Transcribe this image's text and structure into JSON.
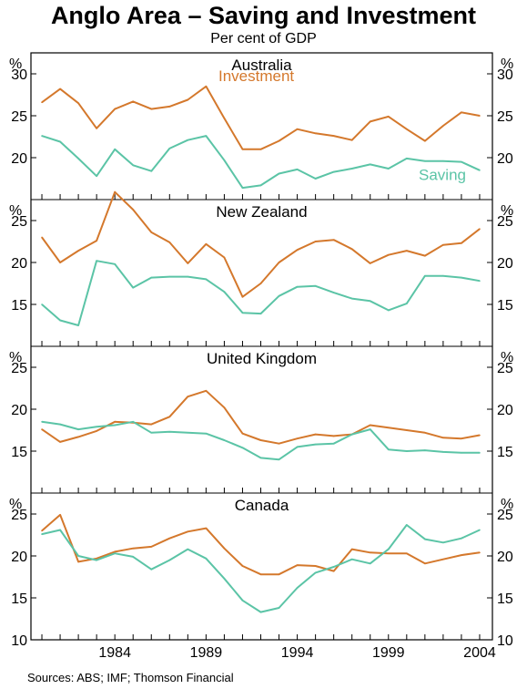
{
  "title": "Anglo Area – Saving and Investment",
  "subtitle": "Per cent of GDP",
  "source": "Sources: ABS; IMF; Thomson Financial",
  "colors": {
    "investment": "#d4782c",
    "saving": "#5bc4a6",
    "frame": "#000000"
  },
  "chart_data": [
    {
      "type": "line",
      "title": "Australia",
      "unit": "%",
      "ylim": [
        15,
        32.5
      ],
      "yticks": [
        20,
        25,
        30
      ],
      "x": [
        1980,
        1981,
        1982,
        1983,
        1984,
        1985,
        1986,
        1987,
        1988,
        1989,
        1990,
        1991,
        1992,
        1993,
        1994,
        1995,
        1996,
        1997,
        1998,
        1999,
        2000,
        2001,
        2002,
        2003,
        2004
      ],
      "series": [
        {
          "name": "Investment",
          "values": [
            26.6,
            28.2,
            26.5,
            23.5,
            25.8,
            26.7,
            25.8,
            26.1,
            26.9,
            28.5,
            24.7,
            21.0,
            21.0,
            22.0,
            23.4,
            22.9,
            22.6,
            22.1,
            24.3,
            24.9,
            23.4,
            22.0,
            23.8,
            25.4,
            25.0
          ]
        },
        {
          "name": "Saving",
          "values": [
            22.6,
            21.9,
            19.9,
            17.8,
            21.0,
            19.1,
            18.4,
            21.1,
            22.1,
            22.6,
            19.7,
            16.4,
            16.7,
            18.1,
            18.6,
            17.5,
            18.3,
            18.7,
            19.2,
            18.7,
            19.9,
            19.6,
            19.6,
            19.5,
            18.5
          ]
        }
      ]
    },
    {
      "type": "line",
      "title": "New Zealand",
      "unit": "%",
      "ylim": [
        10,
        27.5
      ],
      "yticks": [
        15,
        20,
        25
      ],
      "x": [
        1980,
        1981,
        1982,
        1983,
        1984,
        1985,
        1986,
        1987,
        1988,
        1989,
        1990,
        1991,
        1992,
        1993,
        1994,
        1995,
        1996,
        1997,
        1998,
        1999,
        2000,
        2001,
        2002,
        2003,
        2004
      ],
      "series": [
        {
          "name": "Investment",
          "values": [
            23.0,
            20.0,
            21.4,
            22.6,
            28.4,
            26.3,
            23.6,
            22.4,
            19.9,
            22.2,
            20.6,
            15.9,
            17.5,
            20.0,
            21.5,
            22.5,
            22.7,
            21.6,
            19.9,
            20.9,
            21.4,
            20.8,
            22.1,
            22.3,
            24.0
          ]
        },
        {
          "name": "Saving",
          "values": [
            15.0,
            13.1,
            12.5,
            20.2,
            19.8,
            17.0,
            18.2,
            18.3,
            18.3,
            18.0,
            16.5,
            14.0,
            13.9,
            16.0,
            17.1,
            17.2,
            16.4,
            15.7,
            15.4,
            14.3,
            15.1,
            18.4,
            18.4,
            18.2,
            17.8
          ]
        }
      ]
    },
    {
      "type": "line",
      "title": "United Kingdom",
      "unit": "%",
      "ylim": [
        10,
        27.5
      ],
      "yticks": [
        15,
        20,
        25
      ],
      "x": [
        1980,
        1981,
        1982,
        1983,
        1984,
        1985,
        1986,
        1987,
        1988,
        1989,
        1990,
        1991,
        1992,
        1993,
        1994,
        1995,
        1996,
        1997,
        1998,
        1999,
        2000,
        2001,
        2002,
        2003,
        2004
      ],
      "series": [
        {
          "name": "Investment",
          "values": [
            17.6,
            16.1,
            16.7,
            17.4,
            18.5,
            18.4,
            18.2,
            19.1,
            21.5,
            22.2,
            20.2,
            17.1,
            16.3,
            15.9,
            16.5,
            17.0,
            16.8,
            17.0,
            18.1,
            17.8,
            17.5,
            17.2,
            16.6,
            16.5,
            16.9
          ]
        },
        {
          "name": "Saving",
          "values": [
            18.5,
            18.2,
            17.6,
            17.9,
            18.1,
            18.5,
            17.2,
            17.3,
            17.2,
            17.1,
            16.3,
            15.4,
            14.2,
            14.0,
            15.5,
            15.8,
            15.9,
            17.0,
            17.6,
            15.2,
            15.0,
            15.1,
            14.9,
            14.8,
            14.8
          ]
        }
      ]
    },
    {
      "type": "line",
      "title": "Canada",
      "unit": "%",
      "ylim": [
        10,
        27.5
      ],
      "yticks": [
        10,
        15,
        20,
        25
      ],
      "x": [
        1980,
        1981,
        1982,
        1983,
        1984,
        1985,
        1986,
        1987,
        1988,
        1989,
        1990,
        1991,
        1992,
        1993,
        1994,
        1995,
        1996,
        1997,
        1998,
        1999,
        2000,
        2001,
        2002,
        2003,
        2004
      ],
      "xticks": [
        1984,
        1989,
        1994,
        1999,
        2004
      ],
      "series": [
        {
          "name": "Investment",
          "values": [
            23.0,
            24.9,
            19.3,
            19.7,
            20.5,
            20.9,
            21.1,
            22.1,
            22.9,
            23.3,
            20.9,
            18.8,
            17.8,
            17.8,
            18.9,
            18.8,
            18.2,
            20.8,
            20.4,
            20.3,
            20.3,
            19.1,
            19.6,
            20.1,
            20.4
          ]
        },
        {
          "name": "Saving",
          "values": [
            22.6,
            23.1,
            20.0,
            19.5,
            20.3,
            19.9,
            18.4,
            19.5,
            20.8,
            19.7,
            17.3,
            14.7,
            13.3,
            13.8,
            16.2,
            18.0,
            18.7,
            19.6,
            19.1,
            20.8,
            23.7,
            22.0,
            21.6,
            22.1,
            23.1
          ]
        }
      ]
    }
  ]
}
